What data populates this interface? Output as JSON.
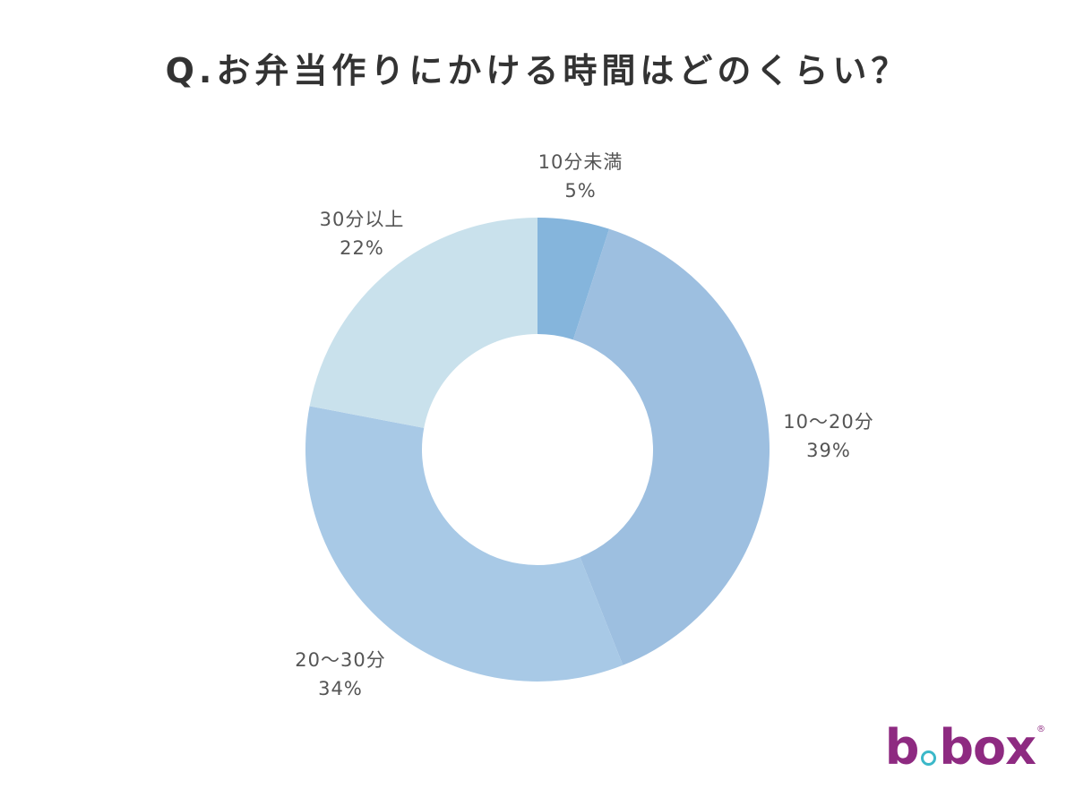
{
  "chart_data": {
    "type": "pie",
    "title": "Q.お弁当作りにかける時間はどのくらい？",
    "donut": true,
    "slices": [
      {
        "label": "10分未満",
        "value": 5,
        "value_label": "5%",
        "color": "#85b5dc"
      },
      {
        "label": "10～20分",
        "value": 39,
        "value_label": "39%",
        "color": "#9dbfe0"
      },
      {
        "label": "20～30分",
        "value": 34,
        "value_label": "34%",
        "color": "#a8c9e6"
      },
      {
        "label": "30分以上",
        "value": 22,
        "value_label": "22%",
        "color": "#c9e1ec"
      }
    ]
  },
  "logo": {
    "left": "b",
    "right": "box",
    "mark": "®"
  }
}
